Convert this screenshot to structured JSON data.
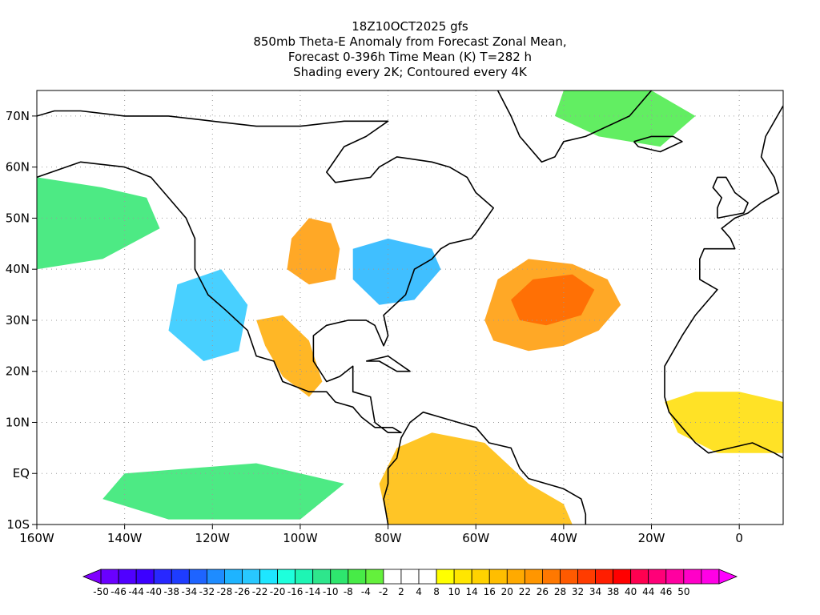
{
  "title": {
    "line1": "18Z10OCT2025 gfs",
    "line2": "850mb Theta-E Anomaly from Forecast Zonal Mean,",
    "line3": "Forecast 0-396h Time Mean (K) T=282 h",
    "line4": "Shading every 2K; Contoured every 4K"
  },
  "map": {
    "lon_range": [
      -160,
      10
    ],
    "lat_range": [
      -10,
      75
    ],
    "x_ticks": [
      {
        "lon": -160,
        "label": "160W"
      },
      {
        "lon": -140,
        "label": "140W"
      },
      {
        "lon": -120,
        "label": "120W"
      },
      {
        "lon": -100,
        "label": "100W"
      },
      {
        "lon": -80,
        "label": "80W"
      },
      {
        "lon": -60,
        "label": "60W"
      },
      {
        "lon": -40,
        "label": "40W"
      },
      {
        "lon": -20,
        "label": "20W"
      },
      {
        "lon": 0,
        "label": "0"
      }
    ],
    "y_ticks": [
      {
        "lat": 70,
        "label": "70N"
      },
      {
        "lat": 60,
        "label": "60N"
      },
      {
        "lat": 50,
        "label": "50N"
      },
      {
        "lat": 40,
        "label": "40N"
      },
      {
        "lat": 30,
        "label": "30N"
      },
      {
        "lat": 20,
        "label": "20N"
      },
      {
        "lat": 10,
        "label": "10N"
      },
      {
        "lat": 0,
        "label": "EQ"
      },
      {
        "lat": -10,
        "label": "10S"
      }
    ],
    "grid": "dotted",
    "anomaly_regions": [
      {
        "name": "north-atlantic-warm-swirl",
        "value": 20,
        "color": "#ff9900",
        "outline": [
          [
            -58,
            30
          ],
          [
            -55,
            38
          ],
          [
            -48,
            42
          ],
          [
            -38,
            41
          ],
          [
            -30,
            38
          ],
          [
            -27,
            33
          ],
          [
            -32,
            28
          ],
          [
            -40,
            25
          ],
          [
            -48,
            24
          ],
          [
            -56,
            26
          ]
        ]
      },
      {
        "name": "north-atlantic-warm-core",
        "value": 26,
        "color": "#ff6600",
        "outline": [
          [
            -52,
            34
          ],
          [
            -47,
            38
          ],
          [
            -38,
            39
          ],
          [
            -33,
            36
          ],
          [
            -36,
            31
          ],
          [
            -44,
            29
          ],
          [
            -50,
            30
          ]
        ]
      },
      {
        "name": "plains-warm-anomaly",
        "value": 16,
        "color": "#ff9900",
        "outline": [
          [
            -102,
            46
          ],
          [
            -98,
            50
          ],
          [
            -93,
            49
          ],
          [
            -91,
            44
          ],
          [
            -92,
            38
          ],
          [
            -98,
            37
          ],
          [
            -103,
            40
          ]
        ]
      },
      {
        "name": "mexico-warm-anomaly",
        "value": 14,
        "color": "#ffaa00",
        "outline": [
          [
            -110,
            30
          ],
          [
            -104,
            31
          ],
          [
            -98,
            26
          ],
          [
            -95,
            18
          ],
          [
            -98,
            15
          ],
          [
            -104,
            19
          ],
          [
            -108,
            25
          ]
        ]
      },
      {
        "name": "south-america-warm-anomaly",
        "value": 12,
        "color": "#ffbb00",
        "outline": [
          [
            -78,
            5
          ],
          [
            -70,
            8
          ],
          [
            -58,
            6
          ],
          [
            -48,
            -2
          ],
          [
            -40,
            -6
          ],
          [
            -38,
            -10
          ],
          [
            -80,
            -10
          ],
          [
            -82,
            -2
          ]
        ]
      },
      {
        "name": "west-africa-warm-anomaly",
        "value": 8,
        "color": "#ffdd00",
        "outline": [
          [
            -17,
            14
          ],
          [
            -10,
            16
          ],
          [
            0,
            16
          ],
          [
            10,
            14
          ],
          [
            10,
            4
          ],
          [
            -5,
            4
          ],
          [
            -14,
            8
          ]
        ]
      },
      {
        "name": "east-us-cold-anomaly",
        "value": -24,
        "color": "#1eb4ff",
        "outline": [
          [
            -88,
            44
          ],
          [
            -80,
            46
          ],
          [
            -70,
            44
          ],
          [
            -68,
            40
          ],
          [
            -74,
            34
          ],
          [
            -82,
            33
          ],
          [
            -88,
            38
          ]
        ]
      },
      {
        "name": "subtropical-pacific-cold-anomaly",
        "value": -22,
        "color": "#28c8ff",
        "outline": [
          [
            -128,
            37
          ],
          [
            -118,
            40
          ],
          [
            -112,
            33
          ],
          [
            -114,
            24
          ],
          [
            -122,
            22
          ],
          [
            -130,
            28
          ]
        ]
      },
      {
        "name": "north-pacific-cold-band",
        "value": -14,
        "color": "#2ee66e",
        "outline": [
          [
            -160,
            58
          ],
          [
            -145,
            56
          ],
          [
            -135,
            54
          ],
          [
            -132,
            48
          ],
          [
            -145,
            42
          ],
          [
            -160,
            40
          ]
        ]
      },
      {
        "name": "greenland-sea-cold-band",
        "value": -12,
        "color": "#47eb47",
        "outline": [
          [
            -40,
            75
          ],
          [
            -20,
            75
          ],
          [
            -10,
            70
          ],
          [
            -18,
            64
          ],
          [
            -32,
            66
          ],
          [
            -42,
            70
          ]
        ]
      },
      {
        "name": "equatorial-pacific-cold-band",
        "value": -16,
        "color": "#2ee66e",
        "outline": [
          [
            -140,
            0
          ],
          [
            -110,
            2
          ],
          [
            -90,
            -2
          ],
          [
            -100,
            -9
          ],
          [
            -130,
            -9
          ],
          [
            -145,
            -5
          ]
        ]
      }
    ],
    "coastlines": [
      {
        "name": "north-america-coastline",
        "points": [
          [
            -160,
            58
          ],
          [
            -150,
            61
          ],
          [
            -140,
            60
          ],
          [
            -134,
            58
          ],
          [
            -130,
            54
          ],
          [
            -126,
            50
          ],
          [
            -124,
            46
          ],
          [
            -124,
            40
          ],
          [
            -121,
            35
          ],
          [
            -117,
            32
          ],
          [
            -112,
            28
          ],
          [
            -110,
            23
          ],
          [
            -106,
            22
          ],
          [
            -104,
            18
          ],
          [
            -98,
            16
          ],
          [
            -94,
            16
          ],
          [
            -92,
            14
          ],
          [
            -88,
            13
          ],
          [
            -86,
            11
          ],
          [
            -83,
            9
          ],
          [
            -79,
            9
          ],
          [
            -77,
            8
          ],
          [
            -80,
            8
          ],
          [
            -83,
            10
          ],
          [
            -84,
            15
          ],
          [
            -88,
            16
          ],
          [
            -88,
            21
          ],
          [
            -91,
            19
          ],
          [
            -94,
            18
          ],
          [
            -97,
            22
          ],
          [
            -97,
            27
          ],
          [
            -94,
            29
          ],
          [
            -89,
            30
          ],
          [
            -85,
            30
          ],
          [
            -83,
            29
          ],
          [
            -81,
            25
          ],
          [
            -80,
            27
          ],
          [
            -81,
            31
          ],
          [
            -76,
            35
          ],
          [
            -74,
            40
          ],
          [
            -70,
            42
          ],
          [
            -68,
            44
          ],
          [
            -66,
            45
          ],
          [
            -61,
            46
          ],
          [
            -60,
            47
          ],
          [
            -56,
            52
          ],
          [
            -60,
            55
          ],
          [
            -62,
            58
          ],
          [
            -66,
            60
          ],
          [
            -70,
            61
          ],
          [
            -78,
            62
          ],
          [
            -82,
            60
          ],
          [
            -84,
            58
          ],
          [
            -92,
            57
          ],
          [
            -94,
            59
          ],
          [
            -90,
            64
          ],
          [
            -85,
            66
          ],
          [
            -80,
            69
          ],
          [
            -90,
            69
          ],
          [
            -100,
            68
          ],
          [
            -110,
            68
          ],
          [
            -120,
            69
          ],
          [
            -130,
            70
          ],
          [
            -140,
            70
          ],
          [
            -150,
            71
          ],
          [
            -156,
            71
          ],
          [
            -160,
            70
          ]
        ]
      },
      {
        "name": "greenland-coastline",
        "points": [
          [
            -55,
            75
          ],
          [
            -52,
            70
          ],
          [
            -50,
            66
          ],
          [
            -45,
            61
          ],
          [
            -42,
            62
          ],
          [
            -40,
            65
          ],
          [
            -35,
            66
          ],
          [
            -25,
            70
          ],
          [
            -20,
            75
          ]
        ]
      },
      {
        "name": "south-america-coastline",
        "points": [
          [
            -80,
            -10
          ],
          [
            -81,
            -5
          ],
          [
            -80,
            -2
          ],
          [
            -80,
            1
          ],
          [
            -78,
            3
          ],
          [
            -77,
            7
          ],
          [
            -75,
            10
          ],
          [
            -72,
            12
          ],
          [
            -68,
            11
          ],
          [
            -64,
            10
          ],
          [
            -60,
            9
          ],
          [
            -57,
            6
          ],
          [
            -52,
            5
          ],
          [
            -50,
            1
          ],
          [
            -48,
            -1
          ],
          [
            -44,
            -2
          ],
          [
            -40,
            -3
          ],
          [
            -36,
            -5
          ],
          [
            -35,
            -8
          ],
          [
            -35,
            -10
          ]
        ]
      },
      {
        "name": "europe-africa-coastline",
        "points": [
          [
            10,
            72
          ],
          [
            6,
            66
          ],
          [
            5,
            62
          ],
          [
            8,
            58
          ],
          [
            9,
            55
          ],
          [
            5,
            53
          ],
          [
            2,
            51
          ],
          [
            -1,
            50
          ],
          [
            -4,
            48
          ],
          [
            -2,
            46
          ],
          [
            -1,
            44
          ],
          [
            -8,
            44
          ],
          [
            -9,
            42
          ],
          [
            -9,
            38
          ],
          [
            -7,
            37
          ],
          [
            -5,
            36
          ],
          [
            -6,
            35
          ],
          [
            -10,
            31
          ],
          [
            -13,
            27
          ],
          [
            -17,
            21
          ],
          [
            -17,
            15
          ],
          [
            -16,
            12
          ],
          [
            -13,
            9
          ],
          [
            -10,
            6
          ],
          [
            -7,
            4
          ],
          [
            -2,
            5
          ],
          [
            3,
            6
          ],
          [
            8,
            4
          ],
          [
            10,
            3
          ]
        ]
      },
      {
        "name": "british-isles-coastline",
        "points": [
          [
            -5,
            50
          ],
          [
            1,
            51
          ],
          [
            2,
            53
          ],
          [
            -1,
            55
          ],
          [
            -3,
            58
          ],
          [
            -5,
            58
          ],
          [
            -6,
            56
          ],
          [
            -4,
            54
          ],
          [
            -5,
            52
          ],
          [
            -5,
            50
          ]
        ]
      },
      {
        "name": "iceland-coastline",
        "points": [
          [
            -24,
            65
          ],
          [
            -20,
            66
          ],
          [
            -15,
            66
          ],
          [
            -13,
            65
          ],
          [
            -18,
            63
          ],
          [
            -23,
            64
          ],
          [
            -24,
            65
          ]
        ]
      },
      {
        "name": "cuba-coastline",
        "points": [
          [
            -85,
            22
          ],
          [
            -80,
            23
          ],
          [
            -75,
            20
          ],
          [
            -78,
            20
          ],
          [
            -82,
            22
          ],
          [
            -85,
            22
          ]
        ]
      }
    ]
  },
  "colorbar": {
    "colors": [
      "#8000ff",
      "#6a00ff",
      "#5000ff",
      "#3c00ff",
      "#2828ff",
      "#1e3cff",
      "#1e64ff",
      "#1e8cff",
      "#1eb4ff",
      "#28c8ff",
      "#1ee6ff",
      "#1effdc",
      "#1ef5b4",
      "#2ee68c",
      "#2ee66e",
      "#47eb47",
      "#64f03c",
      "#ffffff",
      "#ffffff",
      "#ffffff",
      "#ffff00",
      "#ffe600",
      "#ffd200",
      "#ffbe00",
      "#ffaa00",
      "#ff9600",
      "#ff7800",
      "#ff5a00",
      "#ff3c00",
      "#ff1e00",
      "#ff0000",
      "#ff0050",
      "#ff0078",
      "#ff00a0",
      "#ff00c8",
      "#ff00e6",
      "#ff00ff"
    ],
    "labels": [
      "-50",
      "-46",
      "-44",
      "-40",
      "-38",
      "-34",
      "-32",
      "-28",
      "-26",
      "-22",
      "-20",
      "-16",
      "-14",
      "-10",
      "-8",
      "-4",
      "-2",
      "2",
      "4",
      "8",
      "10",
      "14",
      "16",
      "20",
      "22",
      "26",
      "28",
      "32",
      "34",
      "38",
      "40",
      "44",
      "46",
      "50"
    ]
  }
}
